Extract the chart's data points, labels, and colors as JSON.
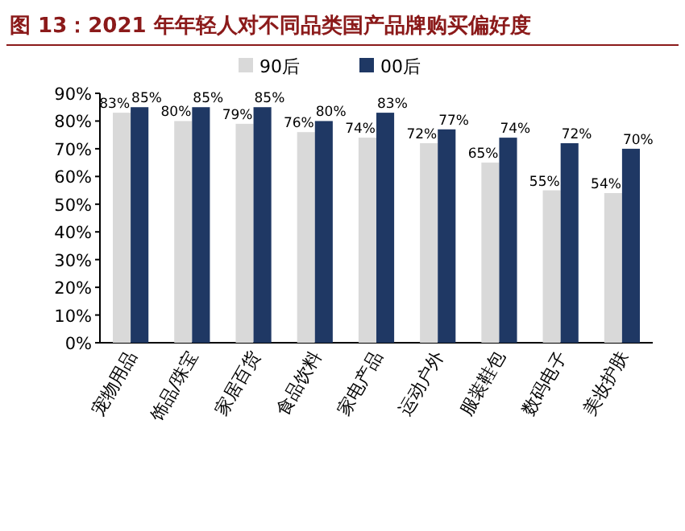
{
  "chart_data": {
    "type": "bar",
    "title": "图 13：2021 年年轻人对不同品类国产品牌购买偏好度",
    "categories": [
      "宠物用品",
      "饰品/珠宝",
      "家居百货",
      "食品饮料",
      "家电产品",
      "运动户外",
      "服装鞋包",
      "数码电子",
      "美妆护肤"
    ],
    "series": [
      {
        "name": "90后",
        "color": "#d9d9d9",
        "values": [
          83,
          80,
          79,
          76,
          74,
          72,
          65,
          55,
          54
        ],
        "value_labels": [
          "83%",
          "80%",
          "79%",
          "76%",
          "74%",
          "72%",
          "65%",
          "55%",
          "54%"
        ]
      },
      {
        "name": "00后",
        "color": "#1f3864",
        "values": [
          85,
          85,
          85,
          80,
          83,
          77,
          74,
          72,
          70
        ],
        "value_labels": [
          "85%",
          "85%",
          "85%",
          "80%",
          "83%",
          "77%",
          "74%",
          "72%",
          "70%"
        ]
      }
    ],
    "ylim": [
      0,
      90
    ],
    "yticks": [
      {
        "value": 0,
        "label": "0%"
      },
      {
        "value": 10,
        "label": "10%"
      },
      {
        "value": 20,
        "label": "20%"
      },
      {
        "value": 30,
        "label": "30%"
      },
      {
        "value": 40,
        "label": "40%"
      },
      {
        "value": 50,
        "label": "50%"
      },
      {
        "value": 60,
        "label": "60%"
      },
      {
        "value": 70,
        "label": "70%"
      },
      {
        "value": 80,
        "label": "80%"
      },
      {
        "value": 90,
        "label": "90%"
      }
    ],
    "legend": "top",
    "grid": false
  }
}
